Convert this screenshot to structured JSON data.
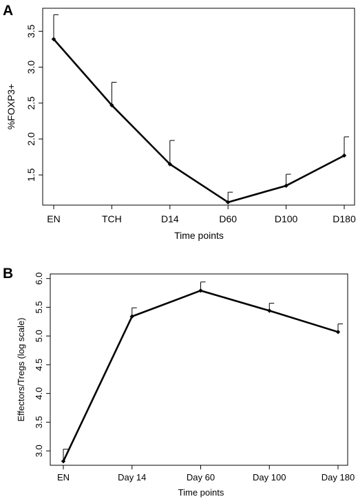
{
  "chart_data": [
    {
      "type": "line",
      "panel_label": "A",
      "xlabel": "Time points",
      "ylabel": "%FOXP3+",
      "categories": [
        "EN",
        "TCH",
        "D14",
        "D60",
        "D100",
        "D180"
      ],
      "values": [
        3.39,
        2.47,
        1.65,
        1.12,
        1.35,
        1.77
      ],
      "error_upper": [
        3.73,
        2.79,
        1.98,
        1.26,
        1.51,
        2.03
      ],
      "yticks": [
        "1.5",
        "2.0",
        "2.5",
        "3.0",
        "3.5"
      ],
      "ylim": [
        1.08,
        3.82
      ],
      "grid": false,
      "line_color": "#000000"
    },
    {
      "type": "line",
      "panel_label": "B",
      "xlabel": "Time points",
      "ylabel": "Effectors/Tregs (log scale)",
      "categories": [
        "EN",
        "Day 14",
        "Day 60",
        "Day 100",
        "Day 180"
      ],
      "values": [
        2.82,
        5.34,
        5.79,
        5.44,
        5.07
      ],
      "error_upper": [
        3.03,
        5.49,
        5.94,
        5.57,
        5.21
      ],
      "yticks": [
        "3.0",
        "3.5",
        "4.0",
        "4.5",
        "5.0",
        "5.5",
        "6.0"
      ],
      "ylim": [
        2.75,
        6.08
      ],
      "grid": false,
      "line_color": "#000000"
    }
  ]
}
